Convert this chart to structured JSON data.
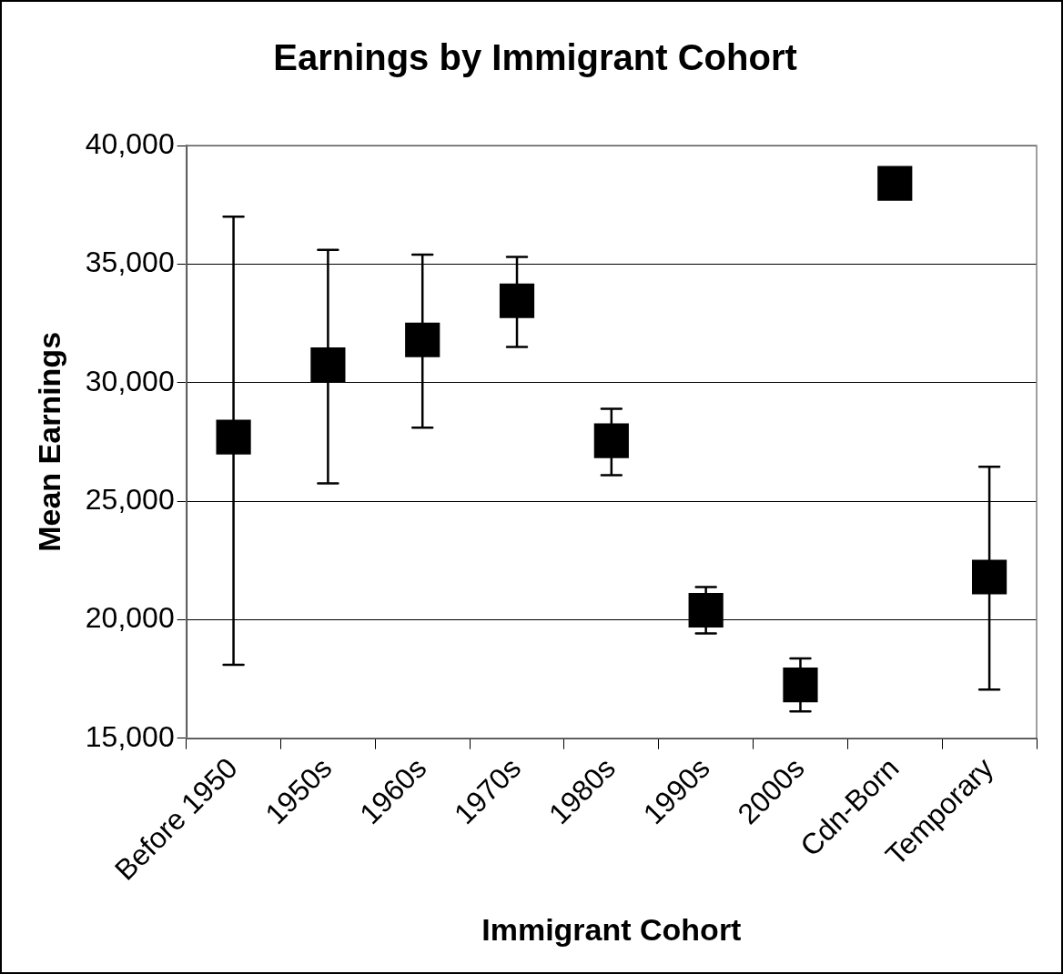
{
  "chart_data": {
    "type": "scatter",
    "title": "Earnings by Immigrant Cohort",
    "xlabel": "Immigrant Cohort",
    "ylabel": "Mean Earnings",
    "categories": [
      "Before 1950",
      "1950s",
      "1960s",
      "1970s",
      "1980s",
      "1990s",
      "2000s",
      "Cdn-Born",
      "Temporary"
    ],
    "values": [
      27700,
      30750,
      31800,
      33450,
      27550,
      20400,
      17250,
      38400,
      21800
    ],
    "errors": [
      [
        18100,
        37000
      ],
      [
        25750,
        35600
      ],
      [
        28100,
        35400
      ],
      [
        31500,
        35300
      ],
      [
        26100,
        28900
      ],
      980,
      1120,
      null,
      [
        17050,
        26450
      ]
    ],
    "color": "#000000",
    "marker": "square",
    "ylim": [
      15000,
      40000
    ],
    "yticks": [
      {
        "value": 15000,
        "label": "15,000"
      },
      {
        "value": 20000,
        "label": "20,000"
      },
      {
        "value": 25000,
        "label": "25,000"
      },
      {
        "value": 30000,
        "label": "30,000"
      },
      {
        "value": 35000,
        "label": "35,000"
      },
      {
        "value": 40000,
        "label": "40,000"
      }
    ],
    "grid": "y"
  }
}
